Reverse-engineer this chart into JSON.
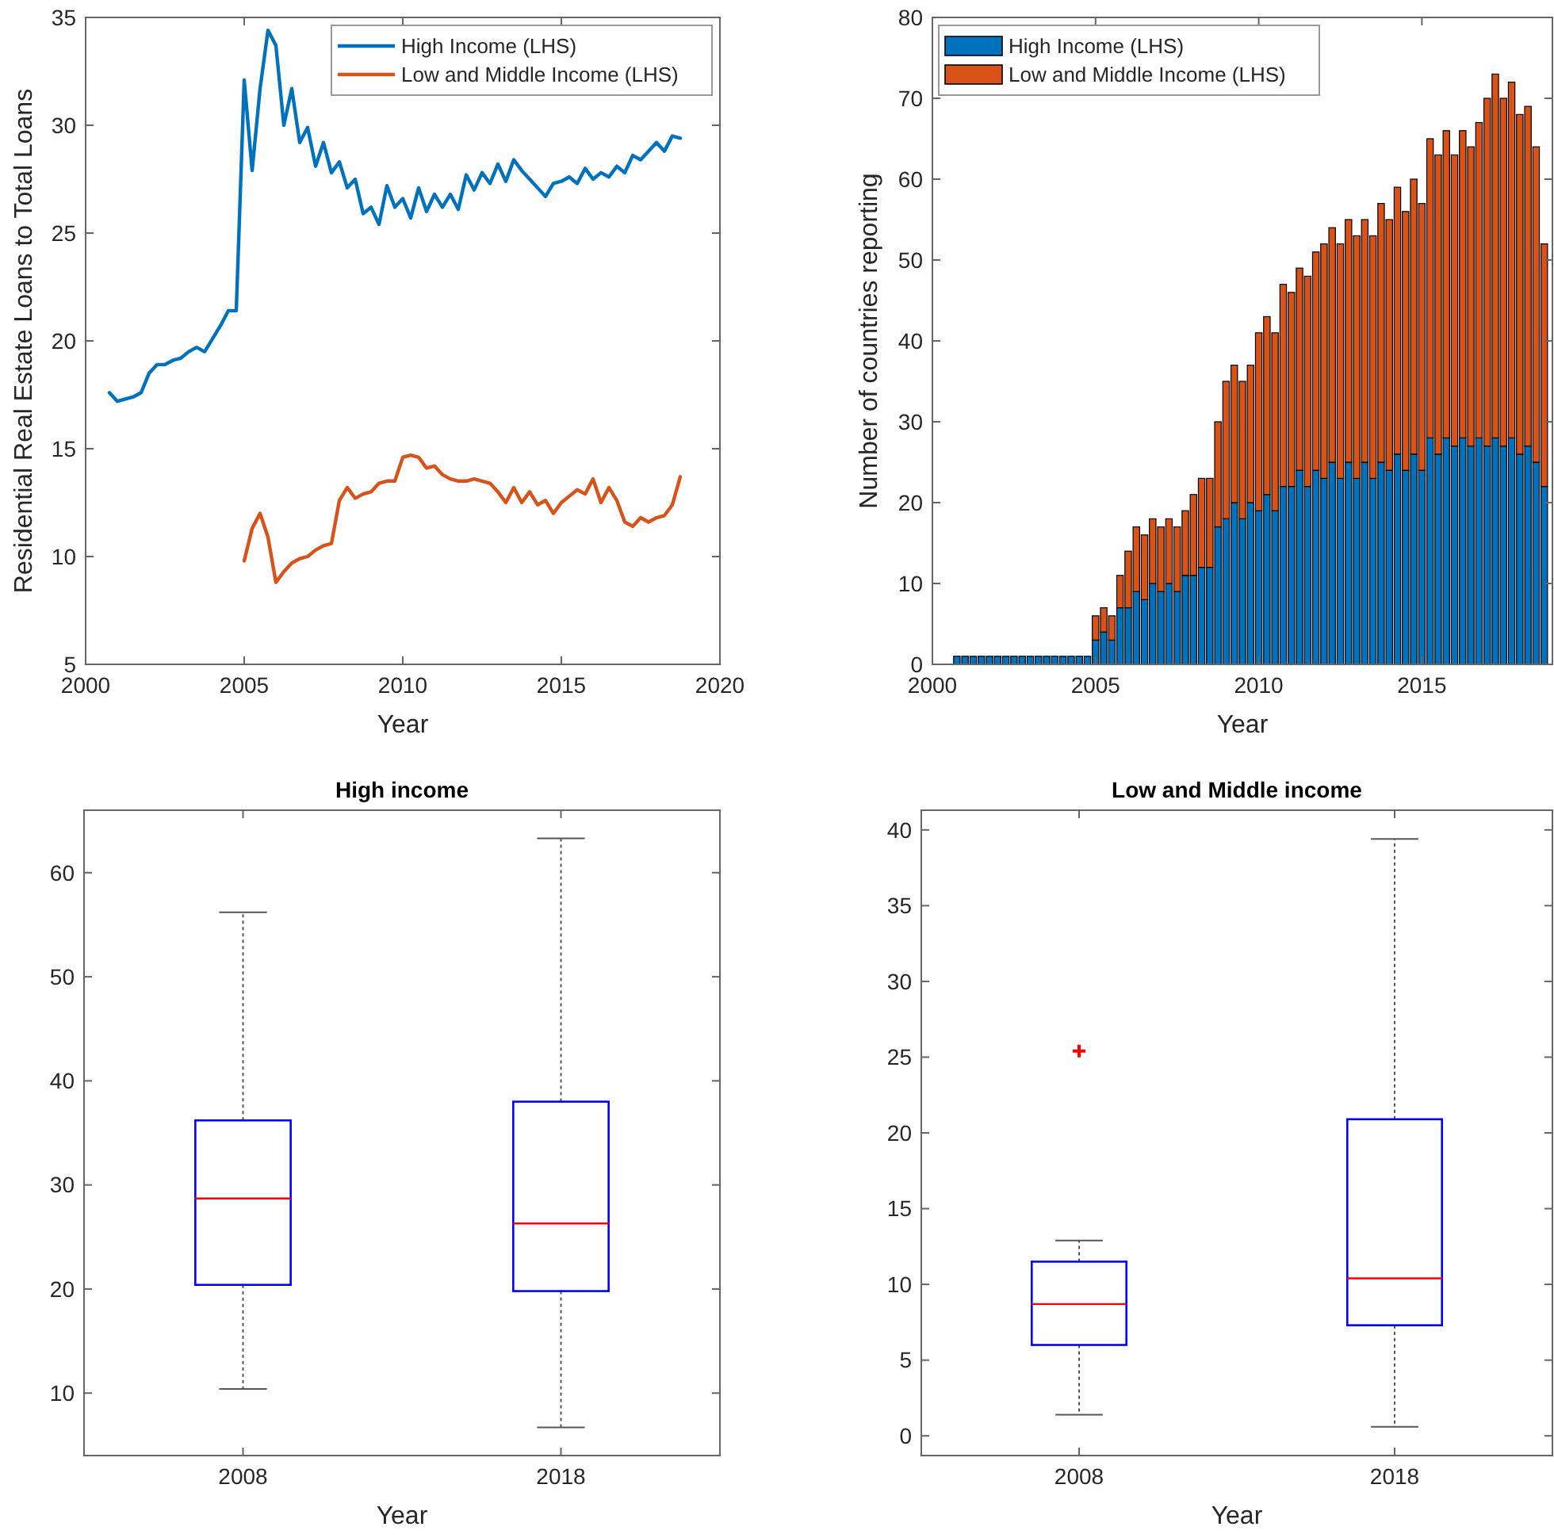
{
  "chart_data": [
    {
      "type": "line",
      "xlabel": "Year",
      "ylabel": "Residential Real Estate Loans to Total Loans",
      "xlim": [
        2000,
        2020
      ],
      "xticks": [
        2000,
        2005,
        2010,
        2015,
        2020
      ],
      "ylim": [
        5,
        35
      ],
      "yticks": [
        5,
        10,
        15,
        20,
        25,
        30,
        35
      ],
      "legend": "top right",
      "grid": false,
      "series": [
        {
          "name": "High Income (LHS)",
          "color": "#0072bd",
          "x": [
            2000.75,
            2001,
            2001.25,
            2001.5,
            2001.75,
            2002,
            2002.25,
            2002.5,
            2002.75,
            2003,
            2003.25,
            2003.5,
            2003.75,
            2004,
            2004.25,
            2004.5,
            2004.75,
            2005,
            2005.25,
            2005.5,
            2005.75,
            2006,
            2006.25,
            2006.5,
            2006.75,
            2007,
            2007.25,
            2007.5,
            2007.75,
            2008,
            2008.25,
            2008.5,
            2008.75,
            2009,
            2009.25,
            2009.5,
            2009.75,
            2010,
            2010.25,
            2010.5,
            2010.75,
            2011,
            2011.25,
            2011.5,
            2011.75,
            2012,
            2012.25,
            2012.5,
            2012.75,
            2013,
            2013.25,
            2013.5,
            2013.75,
            2014,
            2014.25,
            2014.5,
            2014.75,
            2015,
            2015.25,
            2015.5,
            2015.75,
            2016,
            2016.25,
            2016.5,
            2016.75,
            2017,
            2017.25,
            2017.5,
            2017.75,
            2018,
            2018.25,
            2018.5,
            2018.75
          ],
          "values": [
            17.6,
            17.2,
            17.3,
            17.4,
            17.6,
            18.5,
            18.9,
            18.9,
            19.1,
            19.2,
            19.5,
            19.7,
            19.5,
            20.1,
            20.7,
            21.4,
            21.4,
            32.1,
            27.9,
            31.7,
            34.4,
            33.7,
            30.0,
            31.7,
            29.2,
            29.9,
            28.1,
            29.2,
            27.8,
            28.3,
            27.1,
            27.5,
            25.9,
            26.2,
            25.4,
            27.2,
            26.2,
            26.6,
            25.7,
            27.1,
            26.0,
            26.8,
            26.2,
            26.8,
            26.1,
            27.7,
            27.0,
            27.8,
            27.3,
            28.2,
            27.4,
            28.4,
            27.9,
            27.5,
            27.1,
            26.7,
            27.3,
            27.4,
            27.6,
            27.3,
            28.0,
            27.5,
            27.8,
            27.6,
            28.1,
            27.8,
            28.6,
            28.4,
            28.8,
            29.2,
            28.8,
            29.5,
            29.4
          ]
        },
        {
          "name": "Low and Middle Income (LHS)",
          "color": "#d95319",
          "x": [
            2005,
            2005.25,
            2005.5,
            2005.75,
            2006,
            2006.25,
            2006.5,
            2006.75,
            2007,
            2007.25,
            2007.5,
            2007.75,
            2008,
            2008.25,
            2008.5,
            2008.75,
            2009,
            2009.25,
            2009.5,
            2009.75,
            2010,
            2010.25,
            2010.5,
            2010.75,
            2011,
            2011.25,
            2011.5,
            2011.75,
            2012,
            2012.25,
            2012.5,
            2012.75,
            2013,
            2013.25,
            2013.5,
            2013.75,
            2014,
            2014.25,
            2014.5,
            2014.75,
            2015,
            2015.25,
            2015.5,
            2015.75,
            2016,
            2016.25,
            2016.5,
            2016.75,
            2017,
            2017.25,
            2017.5,
            2017.75,
            2018,
            2018.25,
            2018.5,
            2018.75
          ],
          "values": [
            9.8,
            11.3,
            12.0,
            10.9,
            8.8,
            9.3,
            9.7,
            9.9,
            10.0,
            10.3,
            10.5,
            10.6,
            12.6,
            13.2,
            12.7,
            12.9,
            13.0,
            13.4,
            13.5,
            13.5,
            14.6,
            14.7,
            14.6,
            14.1,
            14.2,
            13.8,
            13.6,
            13.5,
            13.5,
            13.6,
            13.5,
            13.4,
            13.0,
            12.5,
            13.2,
            12.5,
            13.0,
            12.4,
            12.6,
            12.0,
            12.5,
            12.8,
            13.1,
            12.9,
            13.6,
            12.5,
            13.2,
            12.6,
            11.6,
            11.4,
            11.8,
            11.6,
            11.8,
            11.9,
            12.4,
            13.7
          ]
        }
      ]
    },
    {
      "type": "bar",
      "stacked": true,
      "xlabel": "Year",
      "ylabel": "Number of countries reporting",
      "xlim": [
        2000,
        2019
      ],
      "xticks": [
        2000,
        2005,
        2010,
        2015
      ],
      "ylim": [
        0,
        80
      ],
      "yticks": [
        0,
        10,
        20,
        30,
        40,
        50,
        60,
        70,
        80
      ],
      "legend": "top left",
      "grid": false,
      "x": [
        2000.75,
        2001,
        2001.25,
        2001.5,
        2001.75,
        2002,
        2002.25,
        2002.5,
        2002.75,
        2003,
        2003.25,
        2003.5,
        2003.75,
        2004,
        2004.25,
        2004.5,
        2004.75,
        2005,
        2005.25,
        2005.5,
        2005.75,
        2006,
        2006.25,
        2006.5,
        2006.75,
        2007,
        2007.25,
        2007.5,
        2007.75,
        2008,
        2008.25,
        2008.5,
        2008.75,
        2009,
        2009.25,
        2009.5,
        2009.75,
        2010,
        2010.25,
        2010.5,
        2010.75,
        2011,
        2011.25,
        2011.5,
        2011.75,
        2012,
        2012.25,
        2012.5,
        2012.75,
        2013,
        2013.25,
        2013.5,
        2013.75,
        2014,
        2014.25,
        2014.5,
        2014.75,
        2015,
        2015.25,
        2015.5,
        2015.75,
        2016,
        2016.25,
        2016.5,
        2016.75,
        2017,
        2017.25,
        2017.5,
        2017.75,
        2018,
        2018.25,
        2018.5,
        2018.75
      ],
      "series": [
        {
          "name": "High Income (LHS)",
          "color": "#0072bd",
          "values": [
            1,
            1,
            1,
            1,
            1,
            1,
            1,
            1,
            1,
            1,
            1,
            1,
            1,
            1,
            1,
            1,
            1,
            3,
            4,
            3,
            7,
            7,
            9,
            8,
            10,
            9,
            10,
            9,
            11,
            11,
            12,
            12,
            17,
            18,
            20,
            18,
            20,
            19,
            21,
            19,
            22,
            22,
            24,
            22,
            24,
            23,
            25,
            23,
            25,
            23,
            25,
            23,
            25,
            24,
            26,
            24,
            26,
            24,
            28,
            26,
            28,
            27,
            28,
            27,
            28,
            27,
            28,
            27,
            28,
            26,
            27,
            25,
            22
          ]
        },
        {
          "name": "Low and Middle Income (LHS)",
          "color": "#d95319",
          "values": [
            0,
            0,
            0,
            0,
            0,
            0,
            0,
            0,
            0,
            0,
            0,
            0,
            0,
            0,
            0,
            0,
            0,
            3,
            3,
            3,
            4,
            7,
            8,
            8,
            8,
            8,
            8,
            8,
            8,
            10,
            11,
            11,
            13,
            17,
            17,
            17,
            17,
            22,
            22,
            22,
            25,
            24,
            25,
            26,
            27,
            29,
            29,
            29,
            30,
            30,
            30,
            30,
            32,
            31,
            33,
            32,
            34,
            33,
            37,
            37,
            38,
            36,
            38,
            37,
            39,
            43,
            45,
            43,
            44,
            42,
            42,
            39,
            30
          ]
        }
      ]
    },
    {
      "type": "box",
      "title": "High income",
      "xlabel": "Year",
      "categories": [
        "2008",
        "2018"
      ],
      "ylim": [
        4,
        66
      ],
      "yticks": [
        10,
        20,
        30,
        40,
        50,
        60
      ],
      "grid": false,
      "color": "#0000ff",
      "boxes": [
        {
          "low": 10.4,
          "q1": 20.4,
          "median": 28.7,
          "q3": 36.2,
          "high": 56.2
        },
        {
          "low": 6.7,
          "q1": 19.8,
          "median": 26.3,
          "q3": 38.0,
          "high": 63.3
        }
      ]
    },
    {
      "type": "box",
      "title": "Low and Middle income",
      "xlabel": "Year",
      "categories": [
        "2008",
        "2018"
      ],
      "ylim": [
        -1.3,
        41.3
      ],
      "yticks": [
        0,
        5,
        10,
        15,
        20,
        25,
        30,
        35,
        40
      ],
      "grid": false,
      "color": "#0000ff",
      "boxes": [
        {
          "low": 1.4,
          "q1": 6.0,
          "median": 8.7,
          "q3": 11.5,
          "high": 12.9,
          "outliers": [
            25.4
          ]
        },
        {
          "low": 0.6,
          "q1": 7.3,
          "median": 10.4,
          "q3": 20.9,
          "high": 39.4
        }
      ]
    }
  ]
}
